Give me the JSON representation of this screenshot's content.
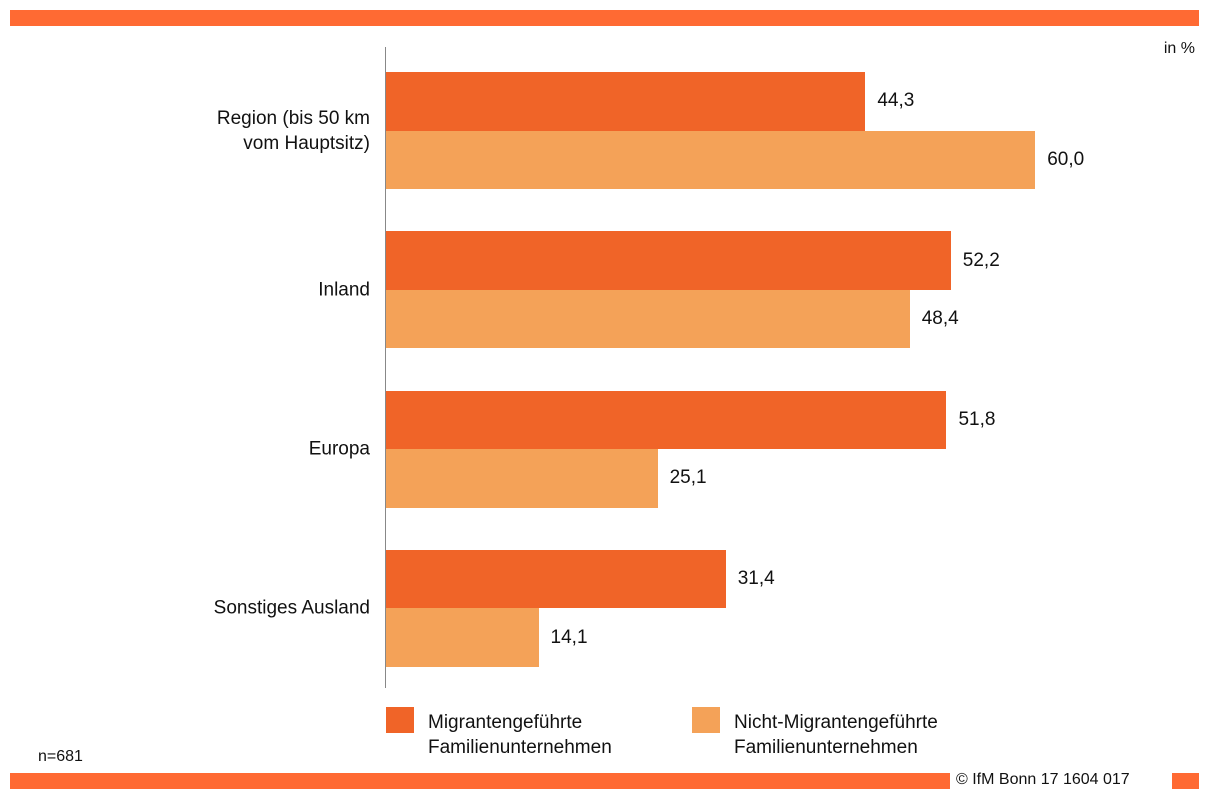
{
  "chart_data": {
    "type": "bar",
    "orientation": "horizontal",
    "unit_label": "in %",
    "note": "n=681",
    "source": "© IfM Bonn 17 1604 017",
    "categories": [
      "Region (bis 50 km\nvom Hauptsitz)",
      "Inland",
      "Europa",
      "Sonstiges Ausland"
    ],
    "series": [
      {
        "name": "Migrantengeführte\nFamilienunternehmen",
        "color": "#f06428",
        "values": [
          44.3,
          52.2,
          51.8,
          31.4
        ],
        "value_labels": [
          "44,3",
          "52,2",
          "51,8",
          "31,4"
        ]
      },
      {
        "name": "Nicht-Migrantengeführte\nFamilienunternehmen",
        "color": "#f4a258",
        "values": [
          60.0,
          48.4,
          25.1,
          14.1
        ],
        "value_labels": [
          "60,0",
          "48,4",
          "25,1",
          "14,1"
        ]
      }
    ]
  }
}
